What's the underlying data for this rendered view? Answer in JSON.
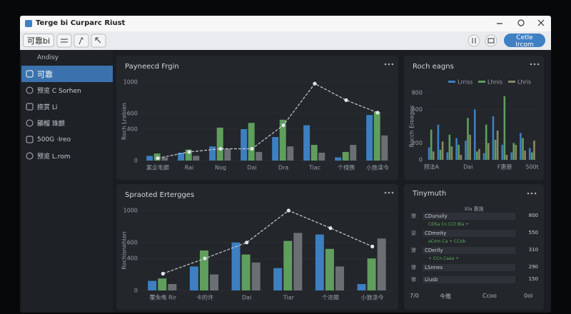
{
  "window": {
    "title": "Terge bi Curparc Riust"
  },
  "toolbar": {
    "workspace": "可靠bi",
    "action": "Cetle Ircom"
  },
  "sidebar": {
    "header": "Andisy",
    "selected": 0,
    "items": [
      {
        "label": "可靠"
      },
      {
        "label": "预览 C Sorhen"
      },
      {
        "label": "捺赏 Li"
      },
      {
        "label": "顯榴 珠颤"
      },
      {
        "label": "500G ·Ireo"
      },
      {
        "label": "预览 L.rom"
      }
    ]
  },
  "chart_data": [
    {
      "type": "bar",
      "title": "Payneecd Frgin",
      "y_label": "Roch Lrabian",
      "grid": true,
      "categories": [
        "案企毛腿",
        "Rai",
        "Nog",
        "Dai",
        "Dra",
        "Tiac",
        "个禄撰",
        "小旅滦今"
      ],
      "ylim": [
        0,
        1000
      ],
      "yticks": [
        0,
        400,
        600,
        1000
      ],
      "series": [
        {
          "color": "#3d7fc1",
          "values": [
            60,
            100,
            180,
            400,
            300,
            450,
            40,
            580
          ]
        },
        {
          "color": "#5f9e5d",
          "values": [
            90,
            140,
            420,
            480,
            520,
            200,
            110,
            620
          ]
        },
        {
          "color": "#6b6f74",
          "values": [
            40,
            60,
            150,
            110,
            180,
            100,
            200,
            320
          ]
        },
        {
          "type": "line",
          "color": "#c9ccd0",
          "values": [
            30,
            110,
            150,
            150,
            450,
            980,
            770,
            610
          ]
        }
      ]
    },
    {
      "type": "bar",
      "title": "Roch eagns",
      "y_label": "Rocch Ereagns",
      "grid": true,
      "legend": "top",
      "categories": [
        "预法A",
        null,
        null,
        null,
        "Dai",
        null,
        null,
        null,
        "F惠册",
        null,
        null,
        "500t"
      ],
      "ylim": [
        0,
        800
      ],
      "yticks": [
        0,
        200,
        600,
        800
      ],
      "series": [
        {
          "name": "Lrriss",
          "color": "#3d7fc1",
          "values": [
            150,
            420,
            90,
            260,
            230,
            600,
            80,
            520,
            180,
            90,
            320,
            140
          ]
        },
        {
          "name": "Lhnis",
          "color": "#5f9e5d",
          "values": [
            360,
            120,
            300,
            180,
            500,
            100,
            420,
            240,
            760,
            200,
            260,
            90
          ]
        },
        {
          "name": "Lhris",
          "color": "#8a8766",
          "values": [
            100,
            220,
            160,
            60,
            300,
            130,
            200,
            350,
            60,
            180,
            110,
            230
          ]
        }
      ]
    },
    {
      "type": "bar",
      "title": "Spraoted Ertergges",
      "y_label": "Rochisnahian",
      "grid": true,
      "categories": [
        "覆免电 Rir",
        "卡的许",
        "Dai",
        "Tiar",
        "个浓题",
        "小旅涤今"
      ],
      "ylim": [
        0,
        1000
      ],
      "yticks": [
        0,
        400,
        600,
        1000
      ],
      "series": [
        {
          "color": "#3d7fc1",
          "values": [
            120,
            300,
            600,
            280,
            700,
            80
          ]
        },
        {
          "color": "#5f9e5d",
          "values": [
            150,
            500,
            450,
            620,
            520,
            400
          ]
        },
        {
          "color": "#6b6f74",
          "values": [
            80,
            200,
            350,
            720,
            300,
            650
          ]
        },
        {
          "type": "line",
          "color": "#c9ccd0",
          "values": [
            210,
            400,
            600,
            1000,
            780,
            550
          ]
        }
      ]
    }
  ],
  "table": {
    "title": "Tinymuth",
    "header": "Xla 惠施",
    "rows": [
      {
        "tag": "骤",
        "name": "CDunuily",
        "value": 800,
        "note": "CDSa Cn CCt Bla +"
      },
      {
        "tag": "梁",
        "name": "CDmeity",
        "value": 550,
        "note": "aCmn Ca + CCnb"
      },
      {
        "tag": "骤",
        "name": "CDerlly",
        "value": 310,
        "note": "+ CCn Caaa +"
      },
      {
        "tag": "骤",
        "name": "LSnnes",
        "value": 290
      },
      {
        "tag": "骤",
        "name": "Llusb",
        "value": 150
      }
    ],
    "footer": [
      "7/0",
      "今雅",
      "Ccoo",
      "0ol"
    ]
  }
}
